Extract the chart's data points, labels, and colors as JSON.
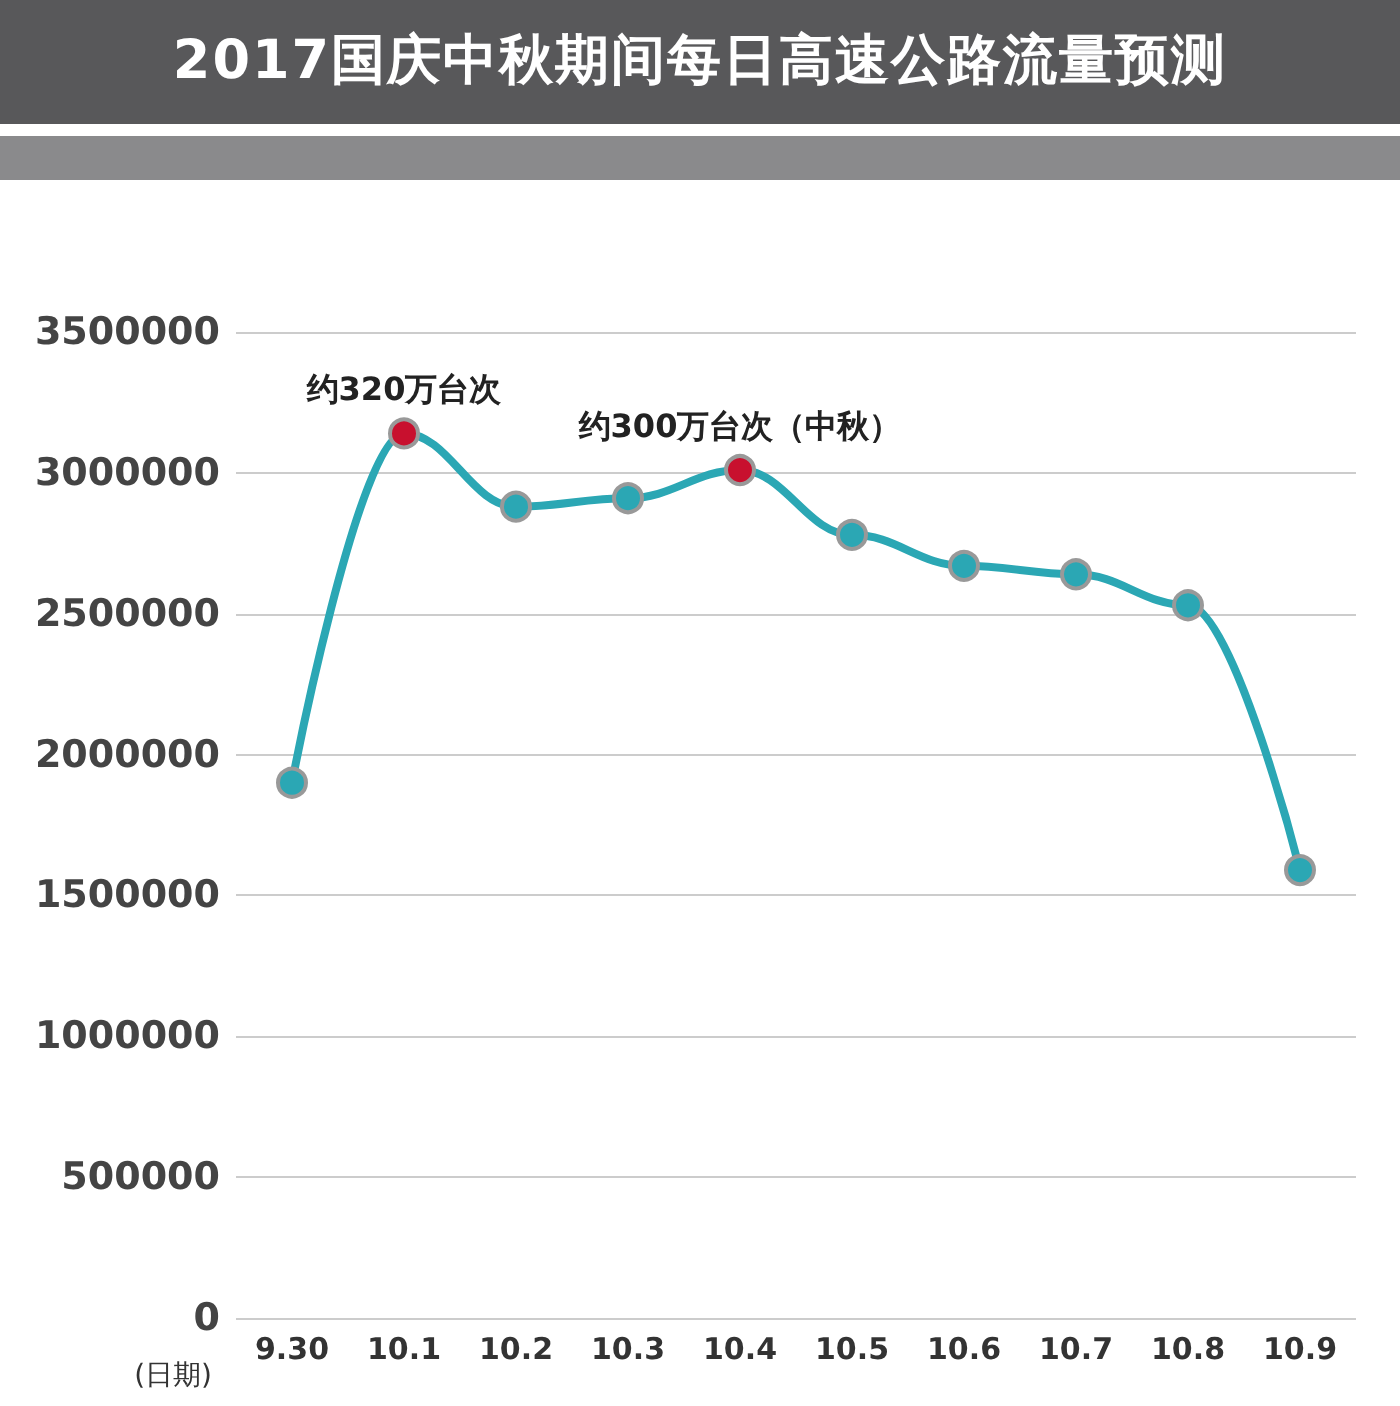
{
  "chart_data": {
    "type": "line",
    "title": "2017国庆中秋期间每日高速公路流量预测",
    "xlabel": "(日期)",
    "categories": [
      "9.30",
      "10.1",
      "10.2",
      "10.3",
      "10.4",
      "10.5",
      "10.6",
      "10.7",
      "10.8",
      "10.9"
    ],
    "series": [
      {
        "color": "#2ba7b4",
        "colors": [
          "#2ba7b4",
          "#c8102e",
          "#2ba7b4",
          "#2ba7b4",
          "#c8102e",
          "#2ba7b4",
          "#2ba7b4",
          "#2ba7b4",
          "#2ba7b4",
          "#2ba7b4"
        ],
        "values": [
          1900000,
          3140000,
          2880000,
          2910000,
          3010000,
          2780000,
          2670000,
          2640000,
          2530000,
          1590000
        ]
      }
    ],
    "ylim": [
      0,
      3500000
    ],
    "yticks": [
      0,
      500000,
      1000000,
      1500000,
      2000000,
      2500000,
      3000000,
      3500000
    ],
    "annotations": [
      {
        "text": "约320万台次",
        "x": "10.1",
        "y": 3140000
      },
      {
        "text": "约300万台次（中秋）",
        "x": "10.4",
        "y": 3010000
      }
    ],
    "grid": "y",
    "marker": "circle",
    "line_style": "solid"
  }
}
